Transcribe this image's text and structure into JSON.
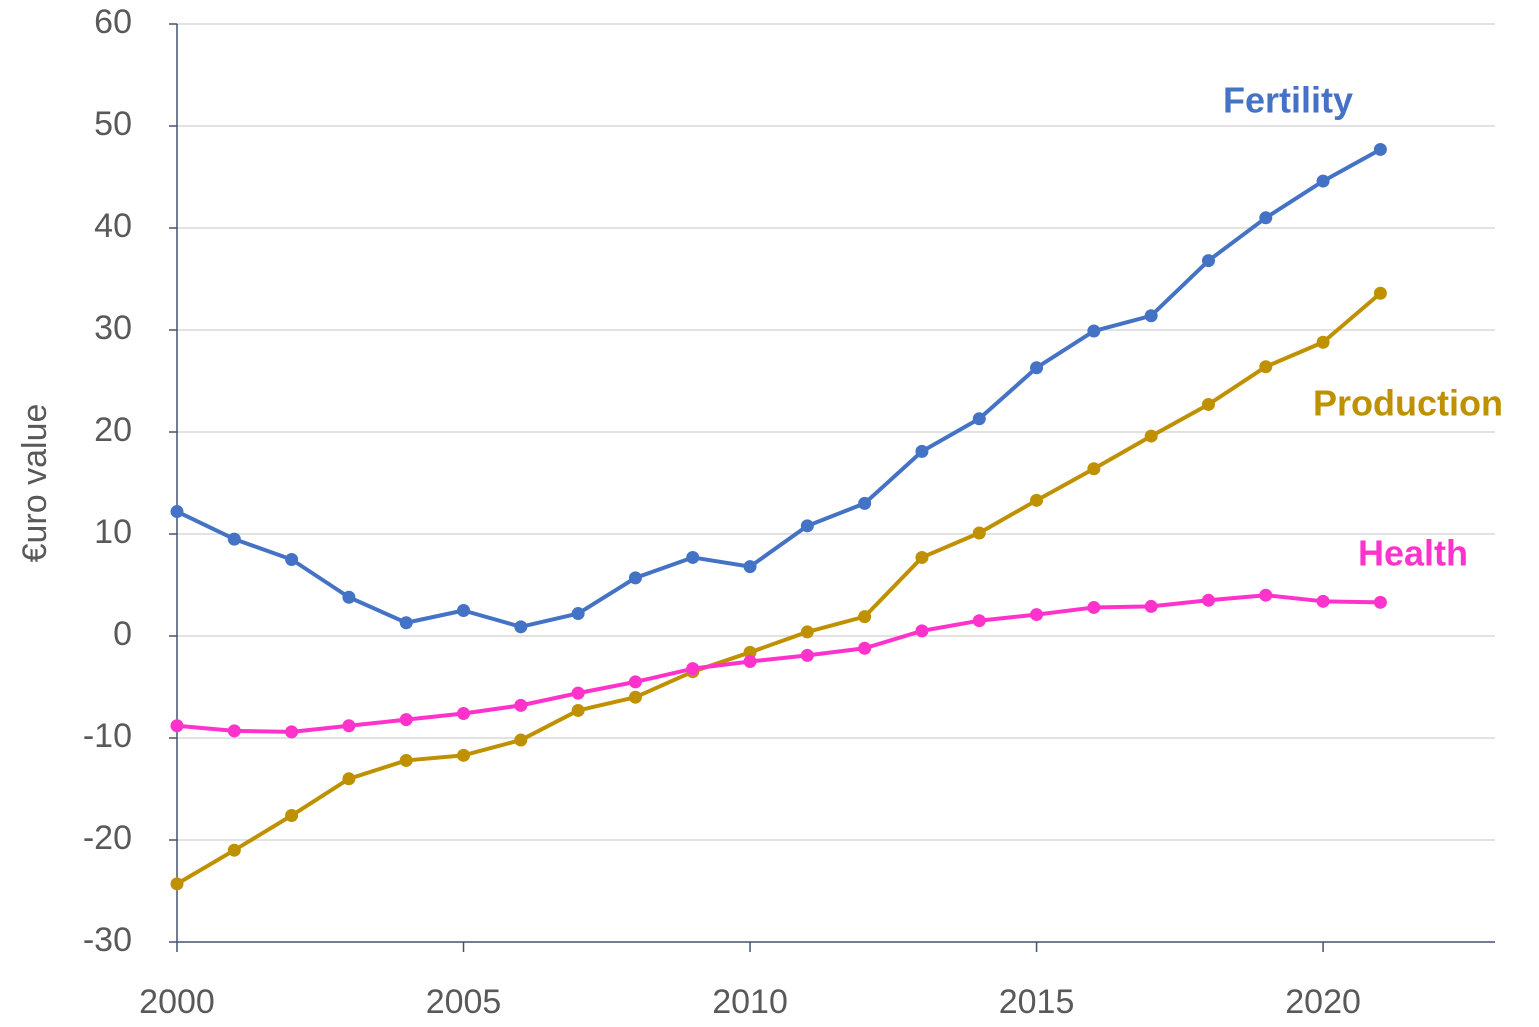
{
  "chart_data": {
    "type": "line",
    "y_label": "€uro value",
    "x": [
      2000,
      2001,
      2002,
      2003,
      2004,
      2005,
      2006,
      2007,
      2008,
      2009,
      2010,
      2011,
      2012,
      2013,
      2014,
      2015,
      2016,
      2017,
      2018,
      2019,
      2020,
      2021
    ],
    "series": [
      {
        "name": "Fertility",
        "color": "#4472c4",
        "values": [
          12.2,
          9.5,
          7.5,
          3.8,
          1.3,
          2.5,
          0.9,
          2.2,
          5.7,
          7.7,
          6.8,
          10.8,
          13.0,
          18.1,
          21.3,
          26.3,
          29.9,
          31.4,
          36.8,
          41.0,
          44.6,
          47.7
        ]
      },
      {
        "name": "Production",
        "color": "#bf9000",
        "values": [
          -24.3,
          -21.0,
          -17.6,
          -14.0,
          -12.2,
          -11.7,
          -10.2,
          -7.3,
          -6.0,
          -3.5,
          -1.6,
          0.4,
          1.9,
          7.7,
          10.1,
          13.3,
          16.4,
          19.6,
          22.7,
          26.4,
          28.8,
          33.6
        ]
      },
      {
        "name": "Health",
        "color": "#ff33cc",
        "values": [
          -8.8,
          -9.3,
          -9.4,
          -8.8,
          -8.2,
          -7.6,
          -6.8,
          -5.6,
          -4.5,
          -3.2,
          -2.5,
          -1.9,
          -1.2,
          0.5,
          1.5,
          2.1,
          2.8,
          2.9,
          3.5,
          4.0,
          3.4,
          3.3
        ]
      }
    ],
    "xlim": [
      2000,
      2023
    ],
    "xticks": [
      2000,
      2005,
      2010,
      2015,
      2020
    ],
    "ylim": [
      -30,
      60
    ],
    "yticks": [
      -30,
      -20,
      -10,
      0,
      10,
      20,
      30,
      40,
      50,
      60
    ],
    "grid": true
  }
}
